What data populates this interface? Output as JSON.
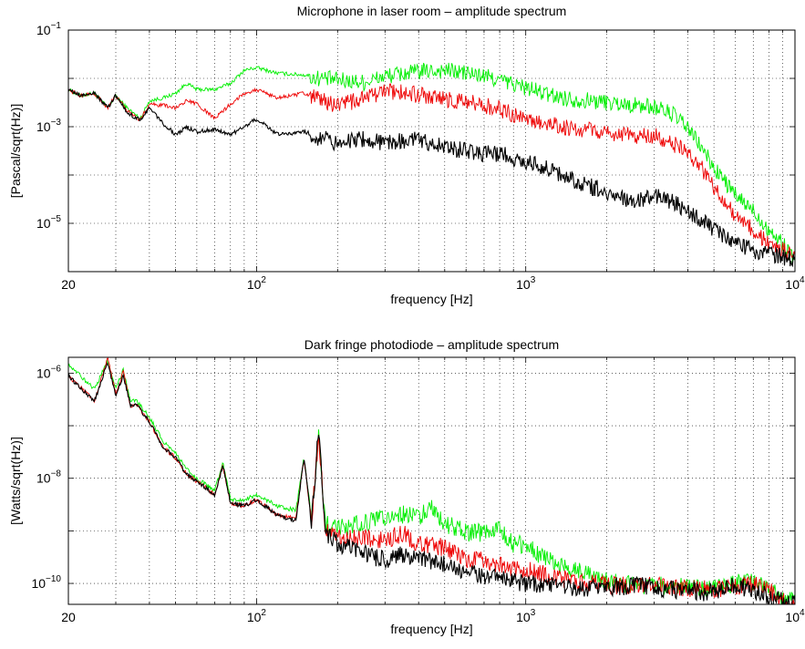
{
  "chart_data": [
    {
      "type": "line",
      "title": "Microphone in laser room – amplitude spectrum",
      "xlabel": "frequency [Hz]",
      "ylabel": "[Pascal/sqrt(Hz)]",
      "xscale": "log",
      "yscale": "log",
      "xlim": [
        20,
        10000
      ],
      "ylim": [
        1e-06,
        0.1
      ],
      "grid": true,
      "x_tick_labels": [
        {
          "value": 20,
          "base": "20",
          "exp": ""
        },
        {
          "value": 100,
          "base": "10",
          "exp": "2"
        },
        {
          "value": 1000,
          "base": "10",
          "exp": "3"
        },
        {
          "value": 10000,
          "base": "10",
          "exp": "4"
        }
      ],
      "y_tick_labels": [
        {
          "value": 0.1,
          "base": "10",
          "exp": "−1"
        },
        {
          "value": 0.001,
          "base": "10",
          "exp": "−3"
        },
        {
          "value": 1e-05,
          "base": "10",
          "exp": "−5"
        }
      ],
      "series": [
        {
          "color": "#00ee00",
          "x": [
            20,
            22,
            25,
            28,
            30,
            33,
            37,
            40,
            45,
            50,
            55,
            60,
            70,
            80,
            90,
            100,
            120,
            150,
            200,
            250,
            300,
            400,
            500,
            600,
            700,
            800,
            1000,
            1200,
            1500,
            2000,
            2500,
            3000,
            3500,
            4000,
            4500,
            5000,
            5500,
            6000,
            7000,
            8000,
            9000,
            10000
          ],
          "y": [
            0.006,
            0.0045,
            0.005,
            0.0025,
            0.0045,
            0.0025,
            0.0015,
            0.0035,
            0.004,
            0.005,
            0.008,
            0.006,
            0.006,
            0.008,
            0.015,
            0.017,
            0.013,
            0.012,
            0.01,
            0.009,
            0.012,
            0.015,
            0.016,
            0.014,
            0.012,
            0.01,
            0.007,
            0.005,
            0.004,
            0.0035,
            0.003,
            0.0028,
            0.002,
            0.001,
            0.0004,
            0.00015,
            8e-05,
            4e-05,
            2e-05,
            8e-06,
            4e-06,
            2e-06
          ]
        },
        {
          "color": "#ee0000",
          "x": [
            20,
            22,
            25,
            28,
            30,
            33,
            37,
            40,
            45,
            50,
            55,
            60,
            70,
            80,
            90,
            100,
            120,
            150,
            200,
            250,
            300,
            400,
            500,
            600,
            700,
            800,
            1000,
            1200,
            1500,
            2000,
            2500,
            3000,
            3500,
            4000,
            4500,
            5000,
            5500,
            6000,
            7000,
            8000,
            9000,
            10000
          ],
          "y": [
            0.006,
            0.0045,
            0.005,
            0.0025,
            0.0045,
            0.0022,
            0.0014,
            0.003,
            0.0028,
            0.0025,
            0.0035,
            0.003,
            0.0015,
            0.003,
            0.005,
            0.006,
            0.004,
            0.005,
            0.003,
            0.004,
            0.006,
            0.005,
            0.004,
            0.0035,
            0.003,
            0.0025,
            0.0015,
            0.0012,
            0.001,
            0.0008,
            0.0007,
            0.0007,
            0.0005,
            0.0003,
            0.00015,
            6e-05,
            3e-05,
            1.5e-05,
            8e-06,
            4e-06,
            3e-06,
            2e-06
          ]
        },
        {
          "color": "#000000",
          "x": [
            20,
            22,
            25,
            28,
            30,
            33,
            37,
            40,
            45,
            50,
            55,
            60,
            70,
            80,
            90,
            100,
            120,
            150,
            200,
            250,
            300,
            400,
            500,
            600,
            700,
            800,
            1000,
            1200,
            1500,
            2000,
            2500,
            3000,
            3500,
            4000,
            4500,
            5000,
            5500,
            6000,
            7000,
            8000,
            9000,
            10000
          ],
          "y": [
            0.006,
            0.0045,
            0.005,
            0.0025,
            0.0045,
            0.002,
            0.0014,
            0.0025,
            0.0012,
            0.0007,
            0.001,
            0.0008,
            0.0009,
            0.0007,
            0.001,
            0.0015,
            0.0007,
            0.0008,
            0.0005,
            0.0006,
            0.0005,
            0.0006,
            0.0004,
            0.00035,
            0.0003,
            0.0003,
            0.0002,
            0.00015,
            8e-05,
            5e-05,
            3e-05,
            4e-05,
            3e-05,
            2e-05,
            1.2e-05,
            8e-06,
            6e-06,
            4e-06,
            3e-06,
            2.5e-06,
            2.2e-06,
            2e-06
          ]
        }
      ]
    },
    {
      "type": "line",
      "title": "Dark fringe photodiode – amplitude spectrum",
      "xlabel": "frequency [Hz]",
      "ylabel": "[Watts/sqrt(Hz)]",
      "xscale": "log",
      "yscale": "log",
      "xlim": [
        20,
        10000
      ],
      "ylim": [
        4e-11,
        2e-06
      ],
      "grid": true,
      "x_tick_labels": [
        {
          "value": 20,
          "base": "20",
          "exp": ""
        },
        {
          "value": 100,
          "base": "10",
          "exp": "2"
        },
        {
          "value": 1000,
          "base": "10",
          "exp": "3"
        },
        {
          "value": 10000,
          "base": "10",
          "exp": "4"
        }
      ],
      "y_tick_labels": [
        {
          "value": 1e-06,
          "base": "10",
          "exp": "−6"
        },
        {
          "value": 1e-08,
          "base": "10",
          "exp": "−8"
        },
        {
          "value": 1e-10,
          "base": "10",
          "exp": "−10"
        }
      ],
      "series": [
        {
          "color": "#00ee00",
          "x": [
            20,
            25,
            28,
            30,
            32,
            34,
            36,
            40,
            45,
            50,
            55,
            60,
            70,
            75,
            80,
            90,
            100,
            120,
            140,
            150,
            160,
            170,
            180,
            200,
            250,
            300,
            350,
            400,
            450,
            500,
            600,
            700,
            800,
            900,
            1000,
            1100,
            1200,
            1500,
            2000,
            2500,
            3000,
            4000,
            5000,
            6000,
            7000,
            8000,
            9000,
            10000
          ],
          "y": [
            1.5e-06,
            5e-07,
            1.8e-06,
            5e-07,
            1.2e-06,
            3e-07,
            3e-07,
            1.5e-07,
            5e-08,
            3e-08,
            1.5e-08,
            1e-08,
            6e-09,
            2e-08,
            4e-09,
            4e-09,
            5e-09,
            3e-09,
            2.5e-09,
            2.5e-08,
            2e-09,
            8e-08,
            1.5e-09,
            1.2e-09,
            1.5e-09,
            2e-09,
            2.2e-09,
            2e-09,
            3e-09,
            1.5e-09,
            1e-09,
            1e-09,
            1.2e-09,
            6e-10,
            6e-10,
            4e-10,
            3e-10,
            2e-10,
            1.2e-10,
            1e-10,
            1e-10,
            9e-11,
            9e-11,
            1.1e-10,
            1.2e-10,
            9e-11,
            6e-11,
            5e-11
          ]
        },
        {
          "color": "#ee0000",
          "x": [
            20,
            25,
            28,
            30,
            32,
            34,
            36,
            40,
            45,
            50,
            55,
            60,
            70,
            75,
            80,
            90,
            100,
            120,
            140,
            150,
            160,
            170,
            180,
            200,
            250,
            300,
            350,
            400,
            450,
            500,
            600,
            700,
            800,
            900,
            1000,
            1100,
            1200,
            1500,
            2000,
            2500,
            3000,
            4000,
            5000,
            6000,
            7000,
            8000,
            9000,
            10000
          ],
          "y": [
            9e-07,
            3e-07,
            2e-06,
            4e-07,
            1.1e-06,
            2.5e-07,
            2.5e-07,
            1.2e-07,
            4e-08,
            2.5e-08,
            1.2e-08,
            9e-09,
            5e-09,
            1.8e-08,
            3.5e-09,
            3e-09,
            4e-09,
            2e-09,
            1.8e-09,
            2.5e-08,
            1.5e-09,
            8e-08,
            1.2e-09,
            8e-10,
            8e-10,
            7e-10,
            1e-09,
            6e-10,
            6e-10,
            5e-10,
            3e-10,
            3e-10,
            2.5e-10,
            2e-10,
            2e-10,
            1.8e-10,
            1.5e-10,
            1.2e-10,
            1e-10,
            1e-10,
            1e-10,
            9e-11,
            8e-11,
            9e-11,
            1.1e-10,
            8e-11,
            5e-11,
            4.5e-11
          ]
        },
        {
          "color": "#000000",
          "x": [
            20,
            25,
            28,
            30,
            32,
            34,
            36,
            40,
            45,
            50,
            55,
            60,
            70,
            75,
            80,
            90,
            100,
            120,
            140,
            150,
            160,
            170,
            180,
            200,
            250,
            300,
            350,
            400,
            450,
            500,
            600,
            700,
            800,
            900,
            1000,
            1100,
            1200,
            1500,
            2000,
            2500,
            3000,
            4000,
            5000,
            6000,
            7000,
            8000,
            9000,
            10000
          ],
          "y": [
            9e-07,
            3e-07,
            1.6e-06,
            4e-07,
            9e-07,
            2.5e-07,
            2.5e-07,
            1.2e-07,
            4e-08,
            2.5e-08,
            1.2e-08,
            9e-09,
            5e-09,
            1.8e-08,
            3.5e-09,
            3e-09,
            4e-09,
            2e-09,
            1.6e-09,
            2.5e-08,
            1.4e-09,
            1e-07,
            1e-09,
            6e-10,
            4e-10,
            3e-10,
            4e-10,
            3e-10,
            3e-10,
            2.5e-10,
            1.8e-10,
            1.5e-10,
            1.5e-10,
            1.2e-10,
            1.1e-10,
            1e-10,
            1e-10,
            9e-11,
            9e-11,
            1e-10,
            9e-11,
            8e-11,
            7e-11,
            1e-10,
            8e-11,
            6e-11,
            5e-11,
            4.5e-11
          ]
        }
      ]
    }
  ]
}
